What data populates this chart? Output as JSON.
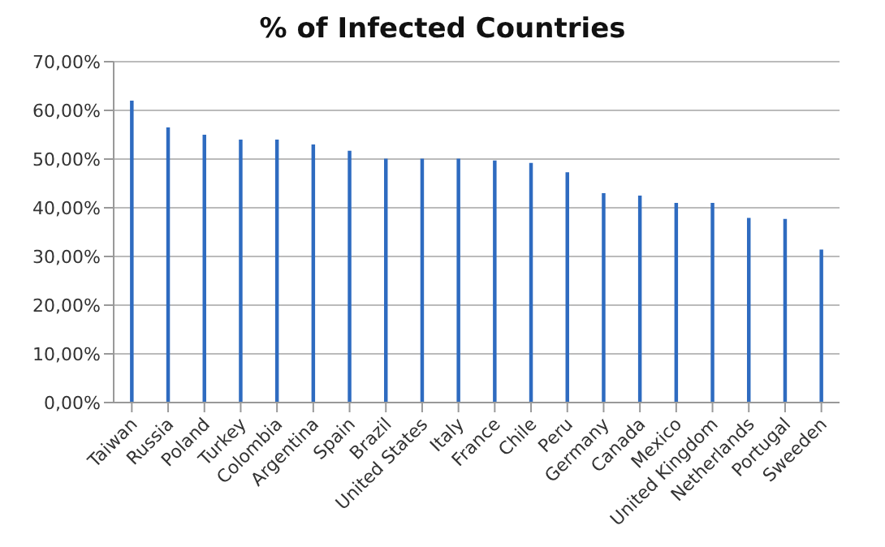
{
  "chart_data": {
    "type": "bar",
    "title": "% of Infected Countries",
    "categories": [
      "Taiwan",
      "Russia",
      "Poland",
      "Turkey",
      "Colombia",
      "Argentina",
      "Spain",
      "Brazil",
      "United States",
      "Italy",
      "France",
      "Chile",
      "Peru",
      "Germany",
      "Canada",
      "Mexico",
      "United Kingdom",
      "Netherlands",
      "Portugal",
      "Sweeden"
    ],
    "values": [
      62,
      56.5,
      55,
      54,
      54,
      53,
      51.7,
      50.1,
      50.1,
      50.1,
      49.7,
      49.2,
      47.3,
      43,
      42.5,
      41,
      41,
      37.9,
      37.7,
      31.4
    ],
    "color": "#2e6bc0",
    "ylim": [
      0,
      70
    ],
    "yticks": [
      {
        "value": 0,
        "label": "0,00%"
      },
      {
        "value": 10,
        "label": "10,00%"
      },
      {
        "value": 20,
        "label": "20,00%"
      },
      {
        "value": 30,
        "label": "30,00%"
      },
      {
        "value": 40,
        "label": "40,00%"
      },
      {
        "value": 50,
        "label": "50,00%"
      },
      {
        "value": 60,
        "label": "60,00%"
      },
      {
        "value": 70,
        "label": "70,00%"
      }
    ],
    "grid": "y"
  }
}
